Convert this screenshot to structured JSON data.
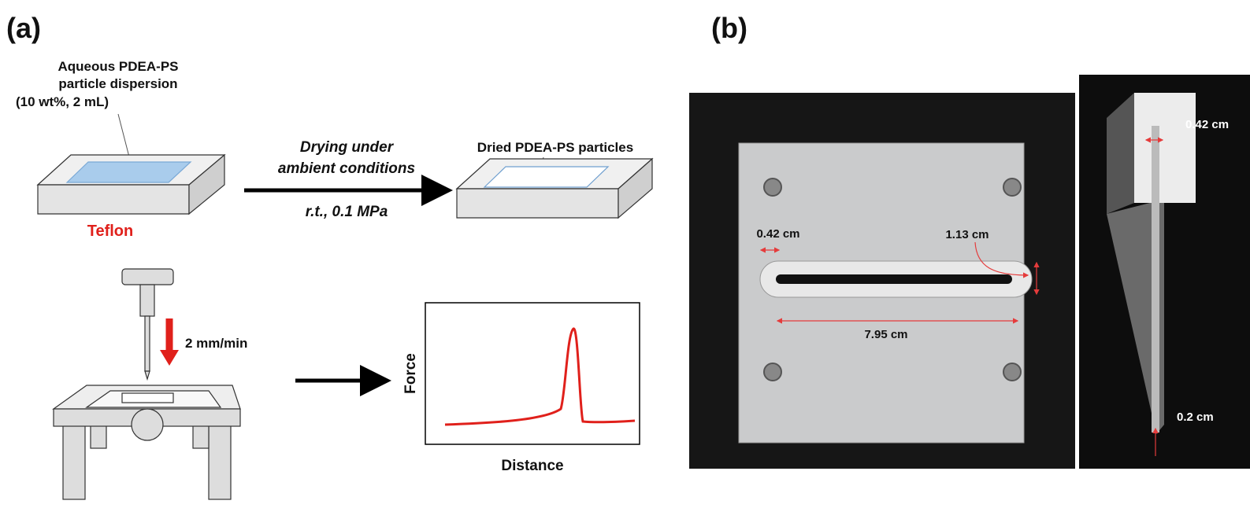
{
  "panel_a": {
    "label": "(a)",
    "dispersion_label": [
      "Aqueous PDEA-PS",
      "particle dispersion",
      "(10 wt%, 2 mL)"
    ],
    "substrate": "Teflon",
    "step": [
      "Drying under",
      "ambient conditions"
    ],
    "condition": "r.t., 0.1 MPa",
    "dried_label": "Dried PDEA-PS particles",
    "speed": "2 mm/min",
    "graph": {
      "y_label": "Force",
      "x_label": "Distance"
    }
  },
  "panel_b": {
    "label": "(b)",
    "top_view": {
      "slot_width": "0.42 cm",
      "slot_height": "1.13 cm",
      "slot_length": "7.95 cm"
    },
    "side_view": {
      "top_width": "0.42 cm",
      "tip": "0.2 cm"
    }
  }
}
